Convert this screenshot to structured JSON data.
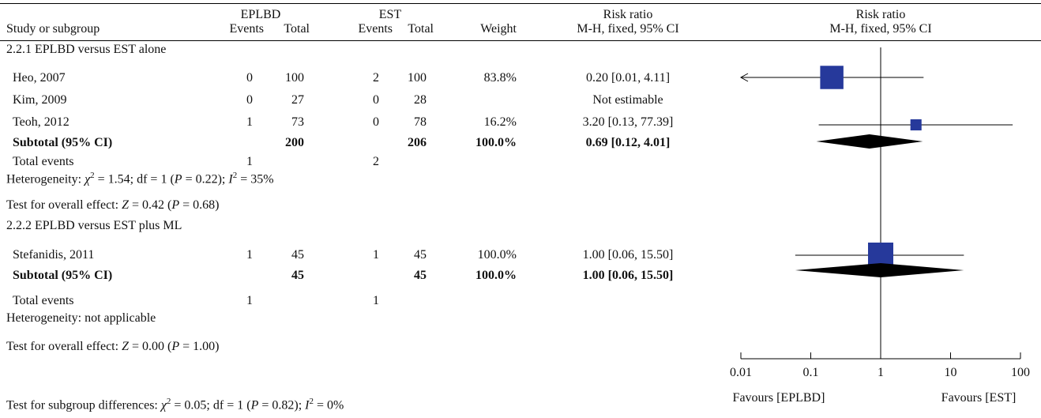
{
  "header": {
    "group1": "EPLBD",
    "group2": "EST",
    "study_or_subgroup": "Study or subgroup",
    "events": "Events",
    "total": "Total",
    "weight": "Weight",
    "rr_title": "Risk ratio",
    "rr_method": "M-H, fixed, 95% CI",
    "plot_title": "Risk ratio",
    "plot_method": "M-H, fixed, 95% CI"
  },
  "subgroups": [
    {
      "title": "2.2.1 EPLBD versus EST alone",
      "studies": [
        {
          "name": "Heo, 2007",
          "e1": "0",
          "t1": "100",
          "e2": "2",
          "t2": "100",
          "weight": "83.8%",
          "ci": "0.20 [0.01, 4.11]"
        },
        {
          "name": "Kim, 2009",
          "e1": "0",
          "t1": "27",
          "e2": "0",
          "t2": "28",
          "weight": "",
          "ci": "Not estimable"
        },
        {
          "name": "Teoh, 2012",
          "e1": "1",
          "t1": "73",
          "e2": "0",
          "t2": "78",
          "weight": "16.2%",
          "ci": "3.20 [0.13, 77.39]"
        }
      ],
      "subtotal": {
        "label": "Subtotal (95% CI)",
        "t1": "200",
        "t2": "206",
        "weight": "100.0%",
        "ci": "0.69 [0.12, 4.01]"
      },
      "total_events": {
        "label": "Total events",
        "e1": "1",
        "e2": "2"
      },
      "heterogeneity": {
        "prefix": "Heterogeneity: ",
        "chi": "χ",
        "chi_sup": "2",
        "mid": " = 1.54; df = 1 (",
        "p": "P",
        "mid2": " = 0.22); ",
        "i": "I",
        "i_sup": "2",
        "end": " = 35%"
      },
      "overall": {
        "prefix": "Test for overall effect: ",
        "z": "Z",
        "mid": " = 0.42 (",
        "p": "P",
        "end": " = 0.68)"
      }
    },
    {
      "title": "2.2.2 EPLBD versus EST plus ML",
      "studies": [
        {
          "name": "Stefanidis, 2011",
          "e1": "1",
          "t1": "45",
          "e2": "1",
          "t2": "45",
          "weight": "100.0%",
          "ci": "1.00 [0.06, 15.50]"
        }
      ],
      "subtotal": {
        "label": "Subtotal (95% CI)",
        "t1": "45",
        "t2": "45",
        "weight": "100.0%",
        "ci": "1.00 [0.06, 15.50]"
      },
      "total_events": {
        "label": "Total events",
        "e1": "1",
        "e2": "1"
      },
      "heterogeneity": {
        "text": "Heterogeneity: not applicable"
      },
      "overall": {
        "prefix": "Test for overall effect: ",
        "z": "Z",
        "mid": " = 0.00 (",
        "p": "P",
        "end": " = 1.00)"
      }
    }
  ],
  "subgroup_test": {
    "prefix": "Test for subgroup differences: ",
    "chi": "χ",
    "chi_sup": "2",
    "mid": " = 0.05; df = 1 (",
    "p": "P",
    "mid2": " = 0.82); ",
    "i": "I",
    "i_sup": "2",
    "end": " = 0%"
  },
  "chart_data": {
    "type": "forest",
    "scale": "log",
    "xlim": [
      0.01,
      100
    ],
    "ticks": [
      0.01,
      0.1,
      1,
      10,
      100
    ],
    "tick_labels": [
      "0.01",
      "0.1",
      "1",
      "10",
      "100"
    ],
    "left_label": "Favours [EPLBD]",
    "right_label": "Favours [EST]",
    "marker_color": "#26399b",
    "studies": [
      {
        "name": "Heo, 2007",
        "rr": 0.2,
        "lower": 0.01,
        "upper": 4.11,
        "weight": 83.8,
        "arrow_left": true
      },
      {
        "name": "Teoh, 2012",
        "rr": 3.2,
        "lower": 0.13,
        "upper": 77.39,
        "weight": 16.2
      },
      {
        "name": "Stefanidis, 2011",
        "rr": 1.0,
        "lower": 0.06,
        "upper": 15.5,
        "weight": 100.0
      }
    ],
    "diamonds": [
      {
        "name": "Subtotal 2.2.1",
        "rr": 0.69,
        "lower": 0.12,
        "upper": 4.01
      },
      {
        "name": "Subtotal 2.2.2",
        "rr": 1.0,
        "lower": 0.06,
        "upper": 15.5
      }
    ]
  }
}
